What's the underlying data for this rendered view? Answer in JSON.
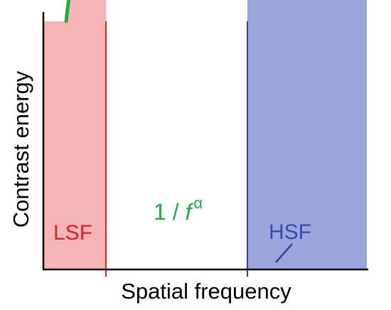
{
  "diagram": {
    "axis_x_label": "Spatial frequency",
    "axis_y_label": "Contrast energy",
    "curve_label": {
      "base": "1 / ",
      "variable": "f",
      "exponent": "α"
    },
    "low_band_label": "LSF",
    "high_band_label": "HSF",
    "colors": {
      "curve": "#22aa44",
      "low_band_line": "#dd2222",
      "low_band_fill": "#f4b4b8",
      "low_band_text": "#dd2222",
      "high_band_line": "#334499",
      "high_band_fill": "#9aa6dc",
      "high_band_text": "#3a4aa8",
      "axis": "#000000"
    }
  }
}
